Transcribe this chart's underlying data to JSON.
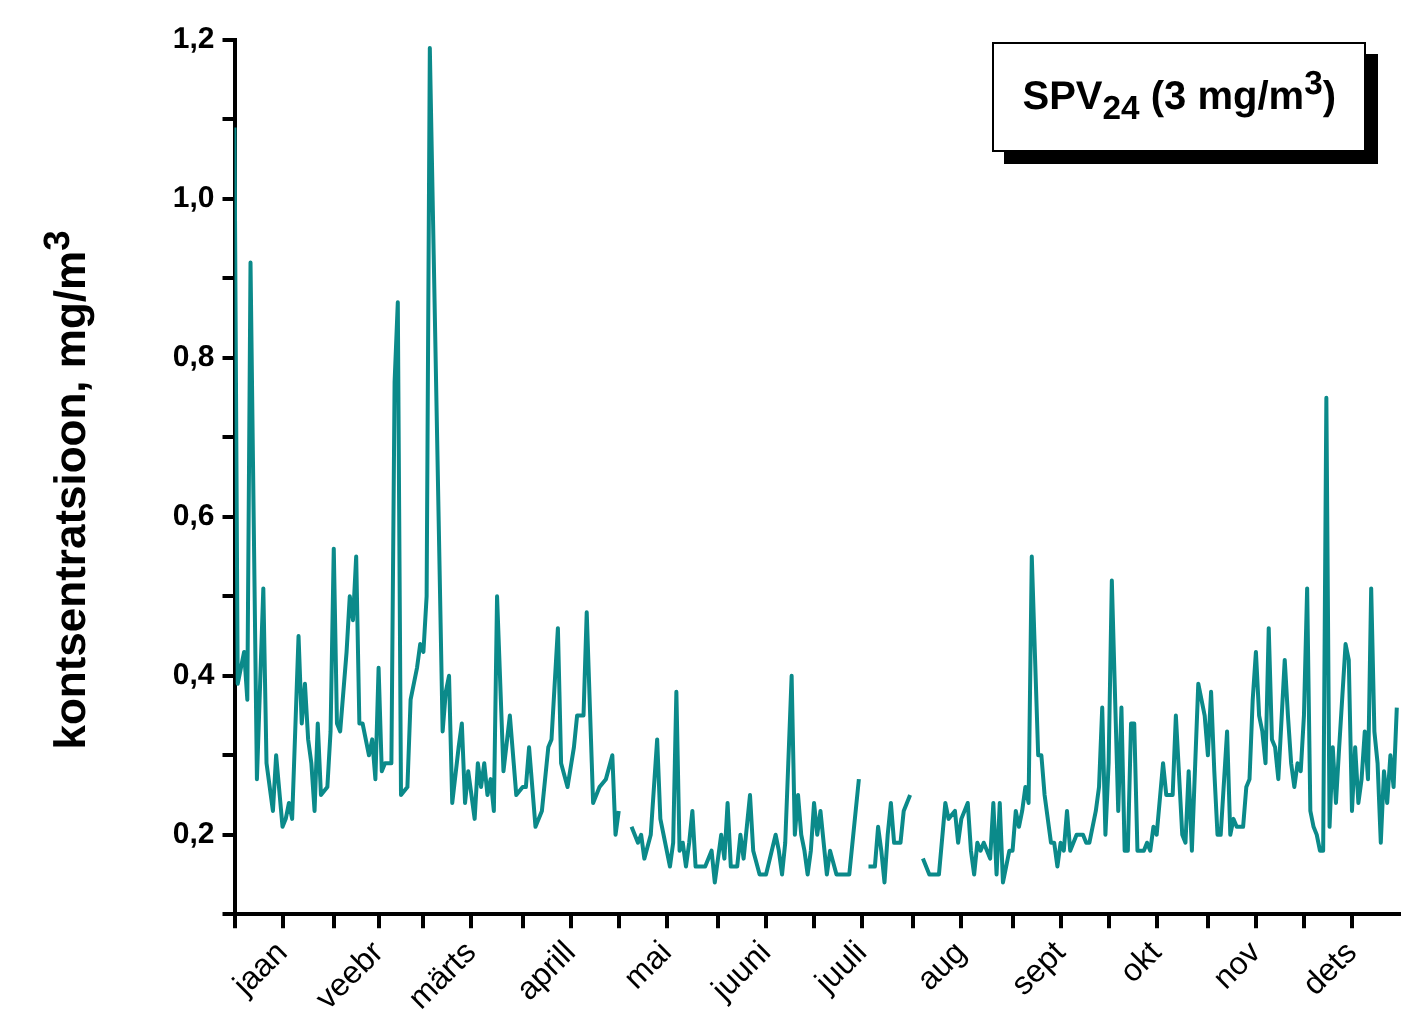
{
  "chart_data": {
    "type": "line",
    "ylabel": "kontsentratsioon, mg/m$^{3}$",
    "annotations": [
      "SPV$_{24}$ (3 mg/m$^{3}$)"
    ],
    "xlim": [
      "--01-01",
      "--12-31"
    ],
    "xticks": [
      {
        "value": "--01-01",
        "label": null
      },
      {
        "value": "--01-16",
        "label": "jaan"
      },
      {
        "value": "--02-01",
        "label": null
      },
      {
        "value": "--02-15",
        "label": "veebr"
      },
      {
        "value": "--03-01",
        "label": null
      },
      {
        "value": "--03-16",
        "label": "märts"
      },
      {
        "value": "--04-01",
        "label": null
      },
      {
        "value": "--04-16",
        "label": "aprill"
      },
      {
        "value": "--05-01",
        "label": null
      },
      {
        "value": "--05-16",
        "label": "mai"
      },
      {
        "value": "--06-01",
        "label": null
      },
      {
        "value": "--06-16",
        "label": "juuni"
      },
      {
        "value": "--07-01",
        "label": null
      },
      {
        "value": "--07-16",
        "label": "juuli"
      },
      {
        "value": "--08-01",
        "label": null
      },
      {
        "value": "--08-16",
        "label": "aug"
      },
      {
        "value": "--09-01",
        "label": null
      },
      {
        "value": "--09-16",
        "label": "sept"
      },
      {
        "value": "--10-01",
        "label": null
      },
      {
        "value": "--10-16",
        "label": "okt"
      },
      {
        "value": "--11-01",
        "label": null
      },
      {
        "value": "--11-16",
        "label": "nov"
      },
      {
        "value": "--12-01",
        "label": null
      },
      {
        "value": "--12-16",
        "label": "dets"
      }
    ],
    "ylim": [
      0.1,
      1.2
    ],
    "yticks": [
      {
        "value": 0.1,
        "label": null
      },
      {
        "value": 0.2,
        "label": "0,2"
      },
      {
        "value": 0.3,
        "label": null
      },
      {
        "value": 0.4,
        "label": "0,4"
      },
      {
        "value": 0.5,
        "label": null
      },
      {
        "value": 0.6,
        "label": "0,6"
      },
      {
        "value": 0.7,
        "label": null
      },
      {
        "value": 0.8,
        "label": "0,8"
      },
      {
        "value": 0.9,
        "label": null
      },
      {
        "value": 1.0,
        "label": "1,0"
      },
      {
        "value": 1.1,
        "label": null
      },
      {
        "value": 1.2,
        "label": "1,2"
      }
    ],
    "marker": "none",
    "line_style": "solid",
    "series": [
      {
        "color": "#0b8a8a",
        "x": [
          "--01-01",
          "--01-02",
          "--01-04",
          "--01-05",
          "--01-06",
          "--01-08",
          "--01-10",
          "--01-11",
          "--01-13",
          "--01-14",
          "--01-16",
          "--01-17",
          "--01-18",
          "--01-19",
          "--01-21",
          "--01-22",
          "--01-23",
          "--01-24",
          "--01-25",
          "--01-26",
          "--01-27",
          "--01-28",
          "--01-30",
          "--01-31",
          "--02-01",
          "--02-02",
          "--02-03",
          "--02-05",
          "--02-06",
          "--02-07",
          "--02-08",
          "--02-09",
          "--02-10",
          "--02-12",
          "--02-13",
          "--02-14",
          "--02-15",
          "--02-16",
          "--02-17",
          "--02-19",
          "--02-20",
          "--02-21",
          "--02-22",
          "--02-24",
          "--02-25",
          "--02-27",
          "--02-28",
          "--03-01",
          "--03-02",
          "--03-03",
          "--03-07",
          "--03-08",
          "--03-09",
          "--03-10",
          "--03-12",
          "--03-13",
          "--03-14",
          "--03-15",
          "--03-17",
          "--03-18",
          "--03-19",
          "--03-20",
          "--03-21",
          "--03-22",
          "--03-23",
          "--03-24",
          "--03-26",
          "--03-28",
          "--03-30",
          "--04-01",
          "--04-02",
          "--04-03",
          "--04-05",
          "--04-07",
          "--04-09",
          "--04-10",
          "--04-12",
          "--04-13",
          "--04-15",
          "--04-17",
          "--04-18",
          "--04-20",
          "--04-21",
          "--04-23",
          "--04-25",
          "--04-27",
          "--04-29",
          "--04-30",
          "--05-01",
          "--05-03",
          "--05-05",
          "--05-07",
          "--05-08",
          "--05-09",
          "--05-11",
          "--05-13",
          "--05-14",
          "--05-15",
          "--05-17",
          "--05-18",
          "--05-19",
          "--05-20",
          "--05-21",
          "--05-22",
          "--05-23",
          "--05-24",
          "--05-25",
          "--05-28",
          "--05-30",
          "--05-31",
          "--06-02",
          "--06-03",
          "--06-04",
          "--06-05",
          "--06-07",
          "--06-08",
          "--06-09",
          "--06-11",
          "--06-12",
          "--06-14",
          "--06-16",
          "--06-19",
          "--06-20",
          "--06-21",
          "--06-22",
          "--06-24",
          "--06-25",
          "--06-26",
          "--06-27",
          "--06-28",
          "--06-29",
          "--06-30",
          "--07-01",
          "--07-02",
          "--07-03",
          "--07-05",
          "--07-06",
          "--07-08",
          "--07-12",
          "--07-15",
          "--07-16",
          "--07-18",
          "--07-20",
          "--07-21",
          "--07-22",
          "--07-23",
          "--07-24",
          "--07-25",
          "--07-26",
          "--07-28",
          "--07-29",
          "--07-31",
          "--08-02",
          "--08-04",
          "--08-06",
          "--08-07",
          "--08-09",
          "--08-11",
          "--08-12",
          "--08-14",
          "--08-15",
          "--08-16",
          "--08-18",
          "--08-19",
          "--08-20",
          "--08-21",
          "--08-22",
          "--08-23",
          "--08-25",
          "--08-26",
          "--08-27",
          "--08-28",
          "--08-29",
          "--08-31",
          "--09-01",
          "--09-02",
          "--09-03",
          "--09-04",
          "--09-05",
          "--09-06",
          "--09-07",
          "--09-09",
          "--09-10",
          "--09-11",
          "--09-13",
          "--09-14",
          "--09-15",
          "--09-16",
          "--09-17",
          "--09-18",
          "--09-19",
          "--09-21",
          "--09-23",
          "--09-24",
          "--09-25",
          "--09-27",
          "--09-28",
          "--09-29",
          "--09-30",
          "--10-01",
          "--10-02",
          "--10-04",
          "--10-05",
          "--10-06",
          "--10-07",
          "--10-08",
          "--10-09",
          "--10-10",
          "--10-12",
          "--10-13",
          "--10-14",
          "--10-15",
          "--10-16",
          "--10-18",
          "--10-19",
          "--10-21",
          "--10-22",
          "--10-24",
          "--10-25",
          "--10-26",
          "--10-27",
          "--10-29",
          "--10-31",
          "--11-01",
          "--11-02",
          "--11-03",
          "--11-04",
          "--11-05",
          "--11-07",
          "--11-08",
          "--11-09",
          "--11-10",
          "--11-12",
          "--11-13",
          "--11-14",
          "--11-15",
          "--11-16",
          "--11-17",
          "--11-18",
          "--11-19",
          "--11-20",
          "--11-21",
          "--11-22",
          "--11-23",
          "--11-25",
          "--11-26",
          "--11-27",
          "--11-28",
          "--11-29",
          "--11-30",
          "--12-01",
          "--12-02",
          "--12-03",
          "--12-04",
          "--12-05",
          "--12-06",
          "--12-07",
          "--12-08",
          "--12-09",
          "--12-10",
          "--12-11",
          "--12-12",
          "--12-14",
          "--12-15",
          "--12-16",
          "--12-17",
          "--12-18",
          "--12-19",
          "--12-20",
          "--12-21",
          "--12-22",
          "--12-23",
          "--12-24",
          "--12-25",
          "--12-26",
          "--12-27",
          "--12-28",
          "--12-29",
          "--12-30"
        ],
        "values": [
          1.09,
          0.39,
          0.43,
          0.37,
          0.92,
          0.27,
          0.51,
          0.29,
          0.23,
          0.3,
          0.21,
          0.22,
          0.24,
          0.22,
          0.45,
          0.34,
          0.39,
          0.32,
          0.29,
          0.23,
          0.34,
          0.25,
          0.26,
          0.33,
          0.56,
          0.34,
          0.33,
          0.43,
          0.5,
          0.47,
          0.55,
          0.34,
          0.34,
          0.3,
          0.32,
          0.27,
          0.41,
          0.28,
          0.29,
          0.29,
          0.77,
          0.87,
          0.25,
          0.26,
          0.37,
          0.41,
          0.44,
          0.43,
          0.5,
          1.19,
          0.33,
          0.38,
          0.4,
          0.24,
          0.31,
          0.34,
          0.24,
          0.28,
          0.22,
          0.29,
          0.26,
          0.29,
          0.25,
          0.27,
          0.23,
          0.5,
          0.28,
          0.35,
          0.25,
          0.26,
          0.26,
          0.31,
          0.21,
          0.23,
          0.31,
          0.32,
          0.46,
          0.29,
          0.26,
          0.31,
          0.35,
          0.35,
          0.48,
          0.24,
          0.26,
          0.27,
          0.3,
          0.2,
          0.23,
          null,
          0.21,
          0.19,
          0.2,
          0.17,
          0.2,
          0.32,
          0.22,
          0.2,
          0.16,
          0.19,
          0.38,
          0.18,
          0.19,
          0.16,
          0.19,
          0.23,
          0.16,
          0.16,
          0.18,
          0.14,
          0.2,
          0.17,
          0.24,
          0.16,
          0.16,
          0.2,
          0.17,
          0.25,
          0.18,
          0.15,
          0.15,
          0.2,
          0.18,
          0.15,
          0.19,
          0.4,
          0.2,
          0.25,
          0.2,
          0.18,
          0.15,
          0.18,
          0.24,
          0.2,
          0.23,
          0.15,
          0.18,
          0.15,
          0.15,
          0.27,
          null,
          0.16,
          0.16,
          0.21,
          0.18,
          0.14,
          0.2,
          0.24,
          0.19,
          0.19,
          0.23,
          0.25,
          null,
          0.17,
          0.15,
          0.15,
          0.15,
          0.24,
          0.22,
          0.23,
          0.19,
          0.22,
          0.24,
          0.18,
          0.15,
          0.19,
          0.18,
          0.19,
          0.17,
          0.24,
          0.15,
          0.24,
          0.14,
          0.18,
          0.18,
          0.23,
          0.21,
          0.23,
          0.26,
          0.24,
          0.55,
          0.3,
          0.3,
          0.25,
          0.19,
          0.19,
          0.16,
          0.19,
          0.18,
          0.23,
          0.18,
          0.2,
          0.2,
          0.19,
          0.19,
          0.23,
          0.26,
          0.36,
          0.2,
          0.29,
          0.52,
          0.23,
          0.36,
          0.18,
          0.18,
          0.34,
          0.34,
          0.18,
          0.18,
          0.19,
          0.18,
          0.21,
          0.2,
          0.29,
          0.25,
          0.25,
          0.35,
          0.2,
          0.19,
          0.28,
          0.18,
          0.39,
          0.35,
          0.3,
          0.38,
          0.28,
          0.2,
          0.2,
          0.33,
          0.2,
          0.22,
          0.21,
          0.21,
          0.26,
          0.27,
          0.37,
          0.43,
          0.35,
          0.33,
          0.29,
          0.46,
          0.32,
          0.31,
          0.27,
          0.42,
          0.35,
          0.29,
          0.26,
          0.29,
          0.28,
          0.35,
          0.51,
          0.23,
          0.21,
          0.2,
          0.18,
          0.18,
          0.75,
          0.21,
          0.31,
          0.24,
          0.31,
          0.44,
          0.42,
          0.23,
          0.31,
          0.24,
          0.27,
          0.33,
          0.27,
          0.51,
          0.33,
          0.29,
          0.19,
          0.28,
          0.24,
          0.3,
          0.26,
          0.36
        ]
      }
    ]
  }
}
